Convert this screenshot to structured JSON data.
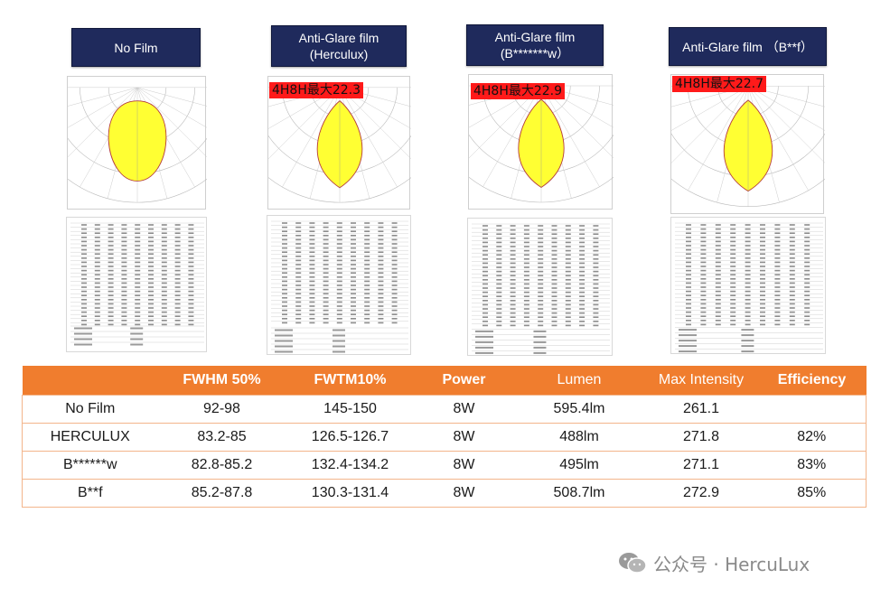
{
  "columns": [
    {
      "title": "No Film",
      "tag": ""
    },
    {
      "title": "Anti-Glare film (Herculux)",
      "tag": "4H8H最大22.3"
    },
    {
      "title": "Anti-Glare film (B*******w）",
      "tag": "4H8H最大22.9"
    },
    {
      "title": "Anti-Glare film （B**f）",
      "tag": "4H8H最大22.7"
    }
  ],
  "table": {
    "headers": [
      "",
      "FWHM 50%",
      "FWTM10%",
      "Power",
      "Lumen",
      "Max Intensity",
      "Efficiency"
    ],
    "rows": [
      [
        "No Film",
        "92-98",
        "145-150",
        "8W",
        "595.4lm",
        "261.1",
        ""
      ],
      [
        "HERCULUX",
        "83.2-85",
        "126.5-126.7",
        "8W",
        "488lm",
        "271.8",
        "82%"
      ],
      [
        "B******w",
        "82.8-85.2",
        "132.4-134.2",
        "8W",
        "495lm",
        "271.1",
        "83%"
      ],
      [
        "B**f",
        "85.2-87.8",
        "130.3-131.4",
        "8W",
        "508.7lm",
        "272.9",
        "85%"
      ]
    ]
  },
  "watermark": {
    "text": "公众号 · HercuLux",
    "icon": "wechat-icon"
  },
  "colors": {
    "title_bg": "#1f2a5c",
    "header_orange": "#f07d2e",
    "tag_red": "#ff1a1a",
    "beam_fill": "#ffff33"
  }
}
